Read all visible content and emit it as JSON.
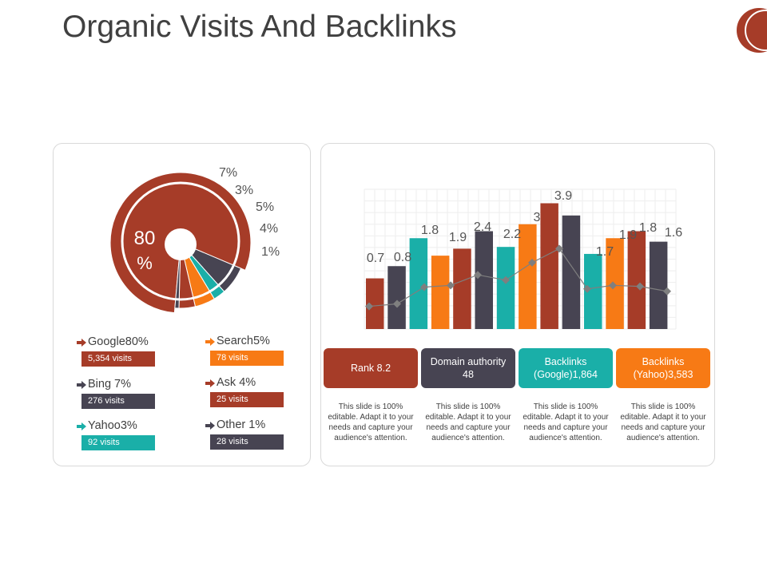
{
  "title": "Organic Visits And Backlinks",
  "colors": {
    "rust": "#A63C28",
    "slate": "#474452",
    "teal": "#1AAFA8",
    "orange": "#F77A15",
    "gray_marker": "#7F7F7F"
  },
  "pie": {
    "center_value": "80",
    "center_unit": "%",
    "slice_labels": [
      "7%",
      "3%",
      "5%",
      "4%",
      "1%"
    ]
  },
  "legend": [
    {
      "label": "Google80%",
      "visits": "5,354 visits",
      "color": "#A63C28"
    },
    {
      "label": "Search5%",
      "visits": "78 visits",
      "color": "#F77A15"
    },
    {
      "label": "Bing 7%",
      "visits": "276 visits",
      "color": "#474452"
    },
    {
      "label": "Ask 4%",
      "visits": "25 visits",
      "color": "#A63C28"
    },
    {
      "label": "Yahoo3%",
      "visits": "92 visits",
      "color": "#1AAFA8"
    },
    {
      "label": "Other 1%",
      "visits": "28 visits",
      "color": "#474452"
    }
  ],
  "metrics": [
    {
      "label": "Rank 8.2",
      "color": "#A63C28",
      "desc": "This slide is 100% editable. Adapt it to your needs and capture your audience's attention."
    },
    {
      "label": "Domain authority 48",
      "color": "#474452",
      "desc": "This slide is 100% editable. Adapt it to your needs and capture your audience's attention."
    },
    {
      "label": "Backlinks (Google)1,864",
      "color": "#1AAFA8",
      "desc": "This slide is 100% editable. Adapt it to your needs and capture your audience's attention."
    },
    {
      "label": "Backlinks (Yahoo)3,583",
      "color": "#F77A15",
      "desc": "This slide is 100% editable. Adapt it to your needs and capture your audience's attention."
    }
  ],
  "chart_data": [
    {
      "type": "pie",
      "slices": [
        {
          "label": "Google",
          "value": 80,
          "color": "#A63C28"
        },
        {
          "label": "Bing",
          "value": 7,
          "color": "#474452"
        },
        {
          "label": "Yahoo",
          "value": 3,
          "color": "#1AAFA8"
        },
        {
          "label": "Search",
          "value": 5,
          "color": "#F77A15"
        },
        {
          "label": "Ask",
          "value": 4,
          "color": "#A63C28"
        },
        {
          "label": "Other",
          "value": 1,
          "color": "#474452"
        }
      ]
    },
    {
      "type": "bar",
      "values": [
        0.7,
        0.8,
        1.8,
        1.9,
        2.4,
        2.2,
        3,
        3.9,
        1.7,
        1.9,
        1.8,
        1.6
      ],
      "bar_heights": [
        1.45,
        1.8,
        2.6,
        2.1,
        2.3,
        2.8,
        2.35,
        3.0,
        3.6,
        3.25,
        2.15,
        2.6,
        2.8,
        2.5
      ],
      "bar_colors": [
        "#A63C28",
        "#474452",
        "#1AAFA8",
        "#F77A15",
        "#A63C28",
        "#474452",
        "#1AAFA8",
        "#F77A15",
        "#A63C28",
        "#474452",
        "#1AAFA8",
        "#F77A15",
        "#A63C28",
        "#474452"
      ],
      "line_values": [
        0.65,
        0.72,
        1.2,
        1.25,
        1.55,
        1.4,
        1.9,
        2.3,
        1.15,
        1.25,
        1.22,
        1.08
      ],
      "ylim": [
        0,
        4
      ],
      "grid": true,
      "legend": "none"
    }
  ]
}
